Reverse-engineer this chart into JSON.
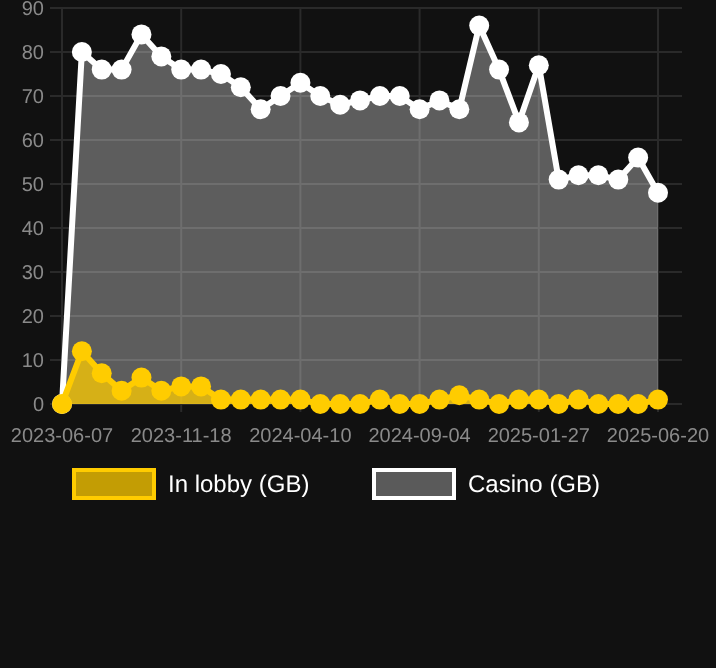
{
  "chart_data": {
    "type": "area",
    "categories": [
      "2023-06-07",
      null,
      null,
      null,
      null,
      null,
      "2023-11-18",
      null,
      null,
      null,
      null,
      null,
      "2024-04-10",
      null,
      null,
      null,
      null,
      null,
      "2024-09-04",
      null,
      null,
      null,
      null,
      null,
      "2025-01-27",
      null,
      null,
      null,
      null,
      null,
      "2025-06-20"
    ],
    "series": [
      {
        "name": "In lobby (GB)",
        "color": "#ffcc00",
        "values": [
          0,
          12,
          7,
          3,
          6,
          3,
          4,
          4,
          1,
          1,
          1,
          1,
          1,
          0,
          0,
          0,
          1,
          0,
          0,
          1,
          2,
          1,
          0,
          1,
          1,
          0,
          1,
          0,
          0,
          0,
          1
        ]
      },
      {
        "name": "Casino (GB)",
        "color": "#ffffff",
        "values": [
          0,
          80,
          76,
          76,
          84,
          79,
          76,
          76,
          75,
          72,
          67,
          70,
          73,
          70,
          68,
          69,
          70,
          70,
          67,
          69,
          67,
          86,
          76,
          64,
          77,
          51,
          52,
          52,
          51,
          56,
          48
        ]
      }
    ],
    "ylim": [
      0,
      90
    ],
    "yticks": [
      0,
      10,
      20,
      30,
      40,
      50,
      60,
      70,
      80,
      90
    ],
    "grid": true,
    "legend": "bottom",
    "marker": "circle"
  }
}
